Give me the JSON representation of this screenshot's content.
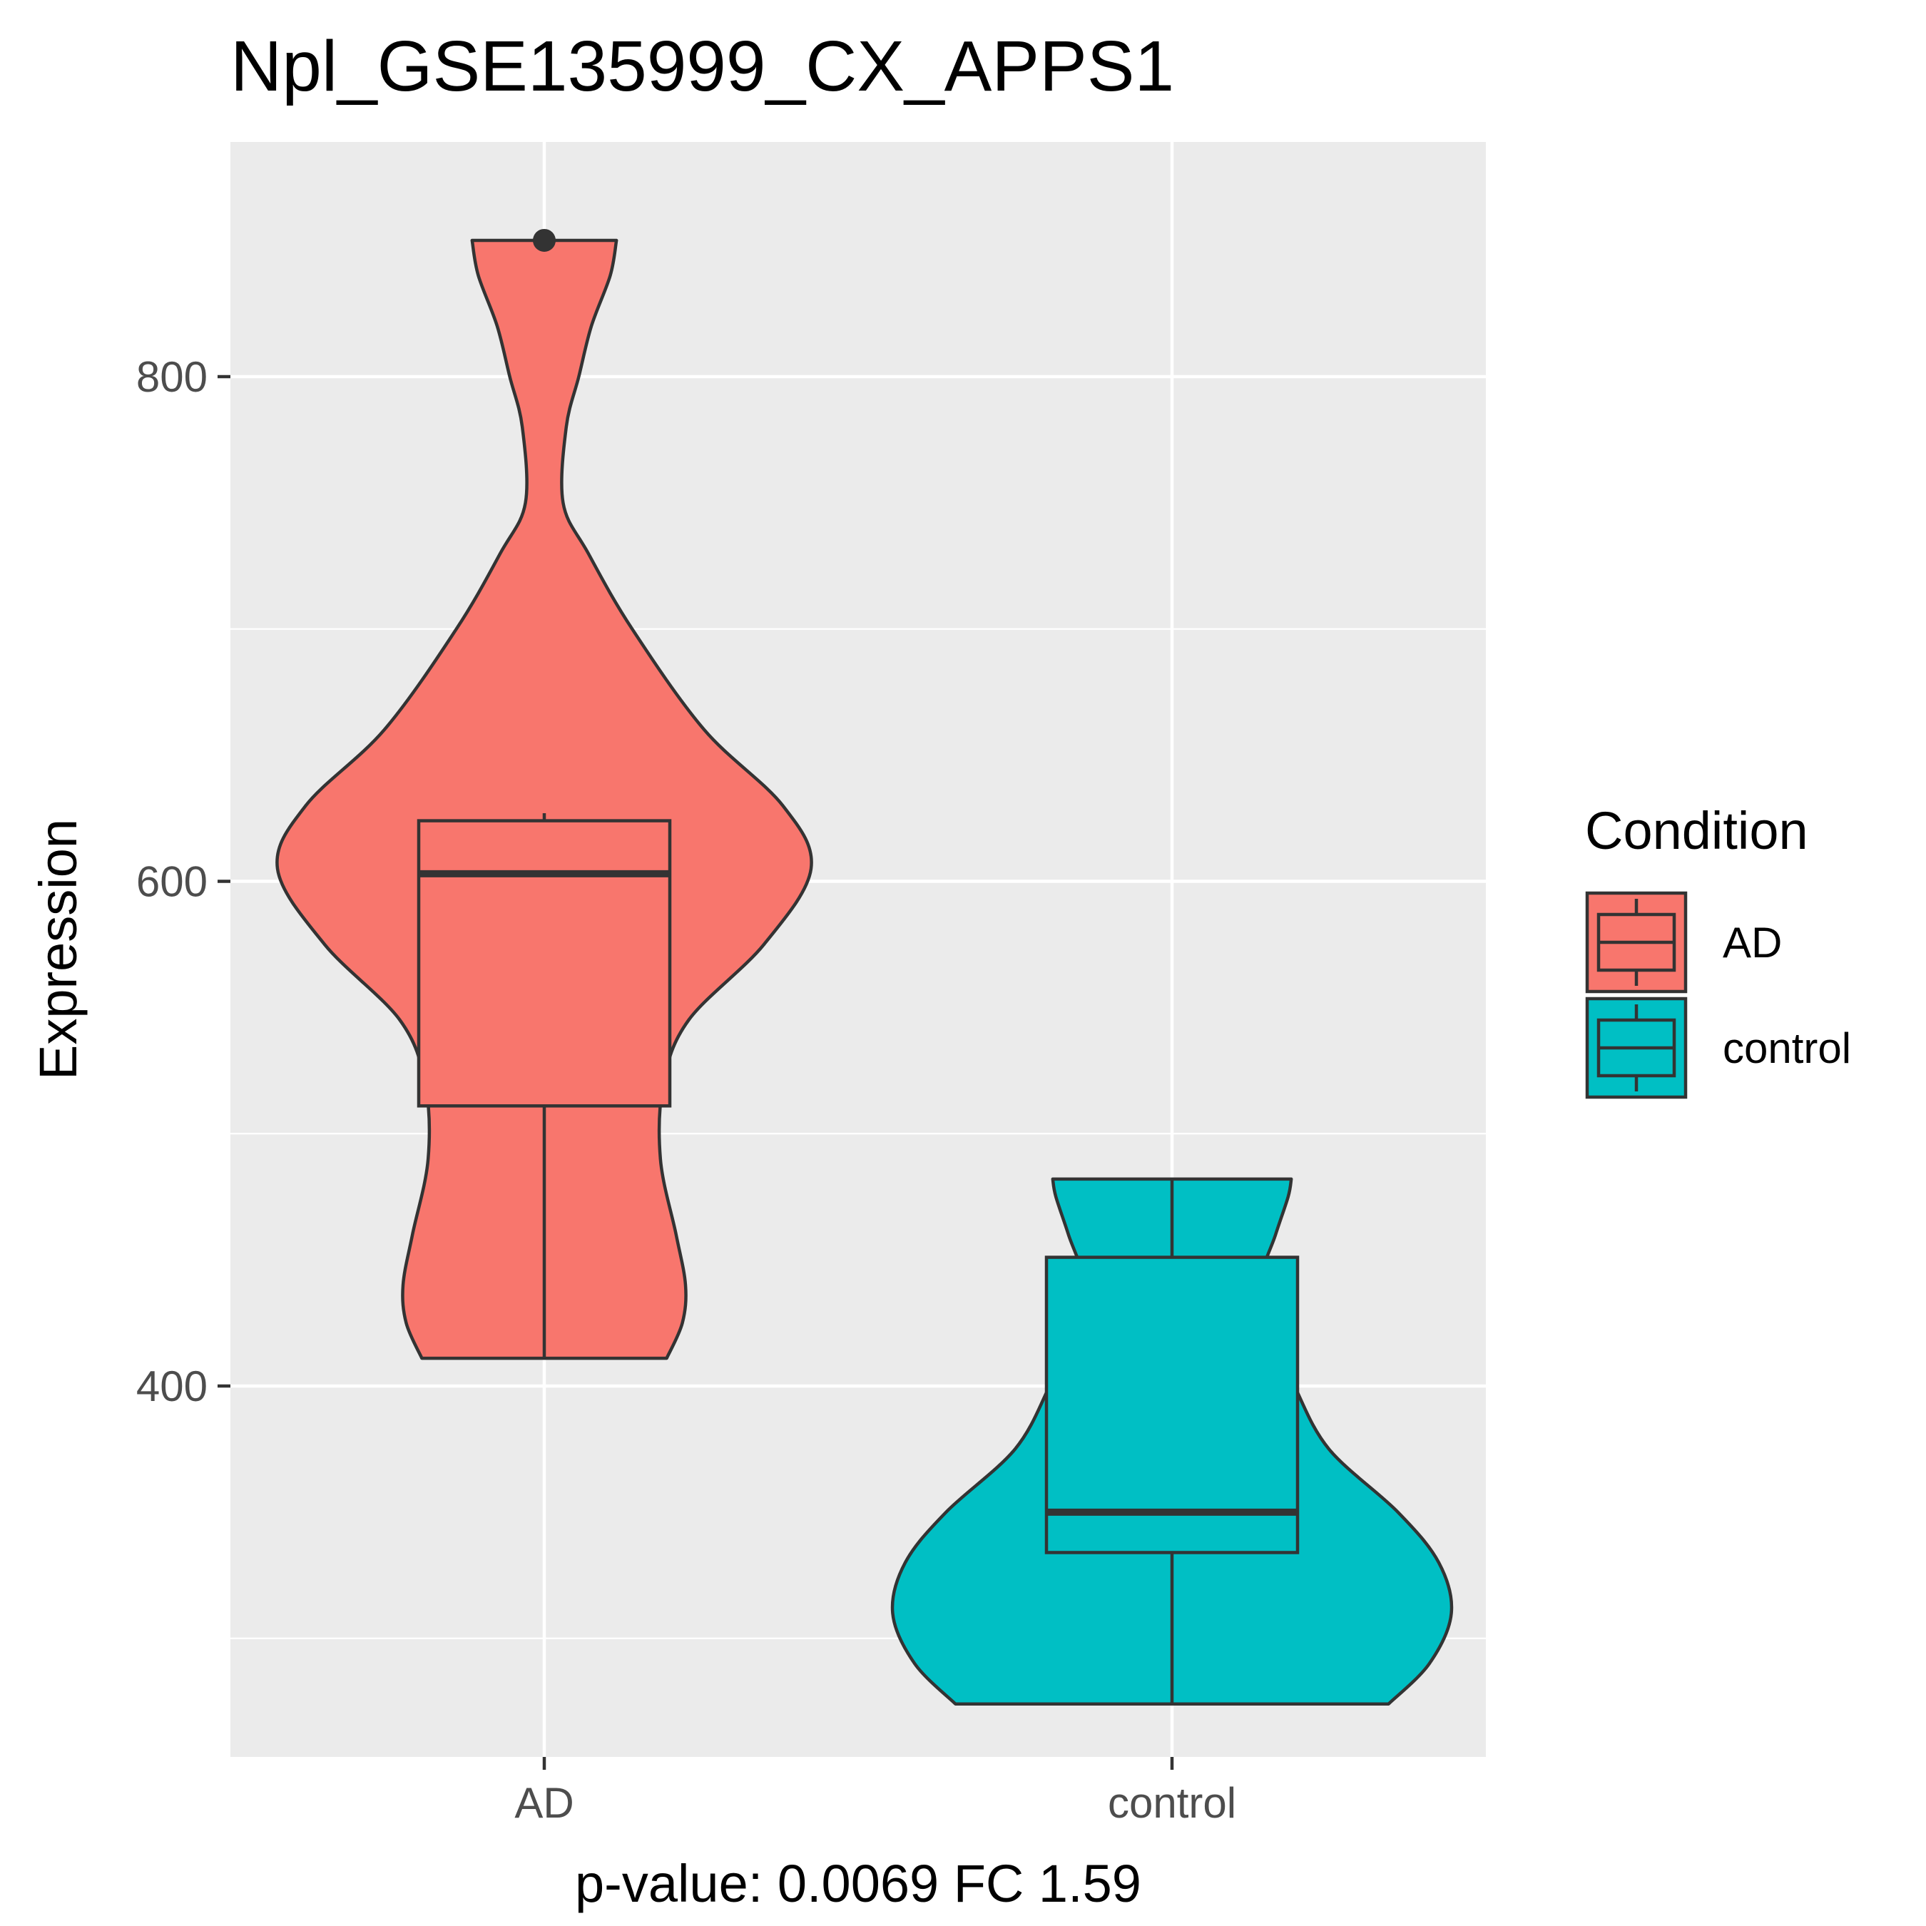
{
  "chart_data": {
    "type": "violin",
    "title": "Npl_GSE135999_CX_APPS1",
    "xlabel": "p-value: 0.0069 FC 1.59",
    "ylabel": "Expression",
    "ylim": [
      253,
      893
    ],
    "y_ticks": [
      400,
      600,
      800
    ],
    "categories": [
      "AD",
      "control"
    ],
    "grid": true,
    "legend": {
      "title": "Condition",
      "position": "right",
      "entries": [
        "AD",
        "control"
      ]
    },
    "series": [
      {
        "name": "AD",
        "color": "#F8766D",
        "violin": {
          "ymin": 411,
          "ymax": 854,
          "profile": [
            [
              411,
              0.39
            ],
            [
              425,
              0.44
            ],
            [
              440,
              0.45
            ],
            [
              460,
              0.42
            ],
            [
              490,
              0.37
            ],
            [
              520,
              0.38
            ],
            [
              545,
              0.46
            ],
            [
              575,
              0.7
            ],
            [
              605,
              0.85
            ],
            [
              630,
              0.76
            ],
            [
              660,
              0.51
            ],
            [
              700,
              0.28
            ],
            [
              730,
              0.14
            ],
            [
              750,
              0.06
            ],
            [
              780,
              0.07
            ],
            [
              800,
              0.11
            ],
            [
              820,
              0.15
            ],
            [
              840,
              0.21
            ],
            [
              854,
              0.23
            ]
          ]
        },
        "box": {
          "min": 411,
          "q1": 511,
          "median": 603,
          "q3": 624,
          "max": 627
        },
        "outliers": [
          854
        ]
      },
      {
        "name": "control",
        "color": "#00BFC4",
        "violin": {
          "ymin": 274,
          "ymax": 482,
          "profile": [
            [
              274,
              0.69
            ],
            [
              290,
              0.82
            ],
            [
              310,
              0.89
            ],
            [
              330,
              0.85
            ],
            [
              350,
              0.72
            ],
            [
              375,
              0.5
            ],
            [
              400,
              0.39
            ],
            [
              420,
              0.32
            ],
            [
              440,
              0.28
            ],
            [
              460,
              0.33
            ],
            [
              475,
              0.37
            ],
            [
              482,
              0.38
            ]
          ]
        },
        "box": {
          "min": 274,
          "q1": 334,
          "median": 350,
          "q3": 451,
          "max": 482
        },
        "outliers": []
      }
    ]
  }
}
